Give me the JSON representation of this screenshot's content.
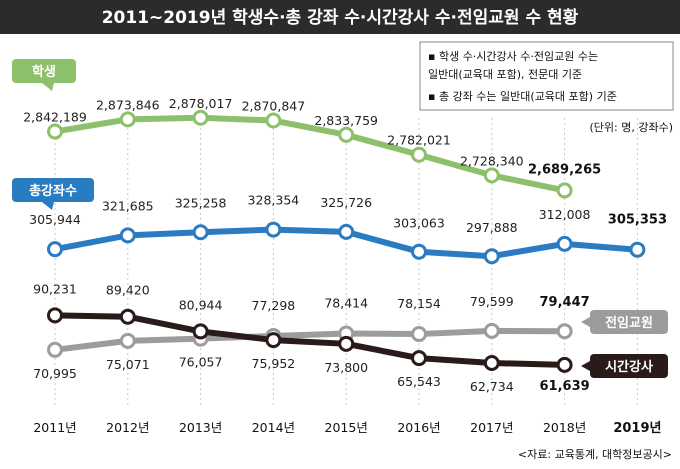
{
  "title": "2011~2019년 학생수·총 강좌 수·시간강사 수·전임교원 수 현황",
  "notes": [
    "▪ 학생 수·시간강사 수·전임교원 수는",
    "  일반대(교육대 포함), 전문대 기준",
    "▪ 총 강좌 수는 일반대(교육대 포함) 기준"
  ],
  "unit": "(단위: 명, 강좌수)",
  "source": "<자료: 교육통계, 대학정보공시>",
  "colors": {
    "title_bg": "#2b2b2b",
    "students": "#8dc06b",
    "courses": "#2a7cc2",
    "fulltime": "#9c9c9c",
    "lecturers": "#2a1a1a",
    "grid": "#c8c8c8"
  },
  "chart_data": {
    "type": "line",
    "categories": [
      "2011년",
      "2012년",
      "2013년",
      "2014년",
      "2015년",
      "2016년",
      "2017년",
      "2018년",
      "2019년"
    ],
    "series": [
      {
        "name": "학생",
        "values": [
          2842189,
          2873846,
          2878017,
          2870847,
          2833759,
          2782021,
          2728340,
          2689265,
          null
        ],
        "labels": [
          "2,842,189",
          "2,873,846",
          "2,878,017",
          "2,870,847",
          "2,833,759",
          "2,782,021",
          "2,728,340",
          "2,689,265",
          ""
        ]
      },
      {
        "name": "총강좌수",
        "values": [
          305944,
          321685,
          325258,
          328354,
          325726,
          303063,
          297888,
          312008,
          305353
        ],
        "labels": [
          "305,944",
          "321,685",
          "325,258",
          "328,354",
          "325,726",
          "303,063",
          "297,888",
          "312,008",
          "305,353"
        ]
      },
      {
        "name": "전임교원",
        "values": [
          70995,
          75071,
          76057,
          77298,
          78414,
          78154,
          79599,
          79447,
          null
        ],
        "labels": [
          "70,995",
          "75,071",
          "76,057",
          "77,298",
          "78,414",
          "78,154",
          "79,599",
          "79,447",
          ""
        ]
      },
      {
        "name": "시간강사",
        "values": [
          90231,
          89420,
          80944,
          75952,
          73800,
          65543,
          62734,
          61639,
          null
        ],
        "labels": [
          "90,231",
          "89,420",
          "80,944",
          "75,952",
          "73,800",
          "65,543",
          "62,734",
          "61,639",
          ""
        ]
      }
    ]
  }
}
